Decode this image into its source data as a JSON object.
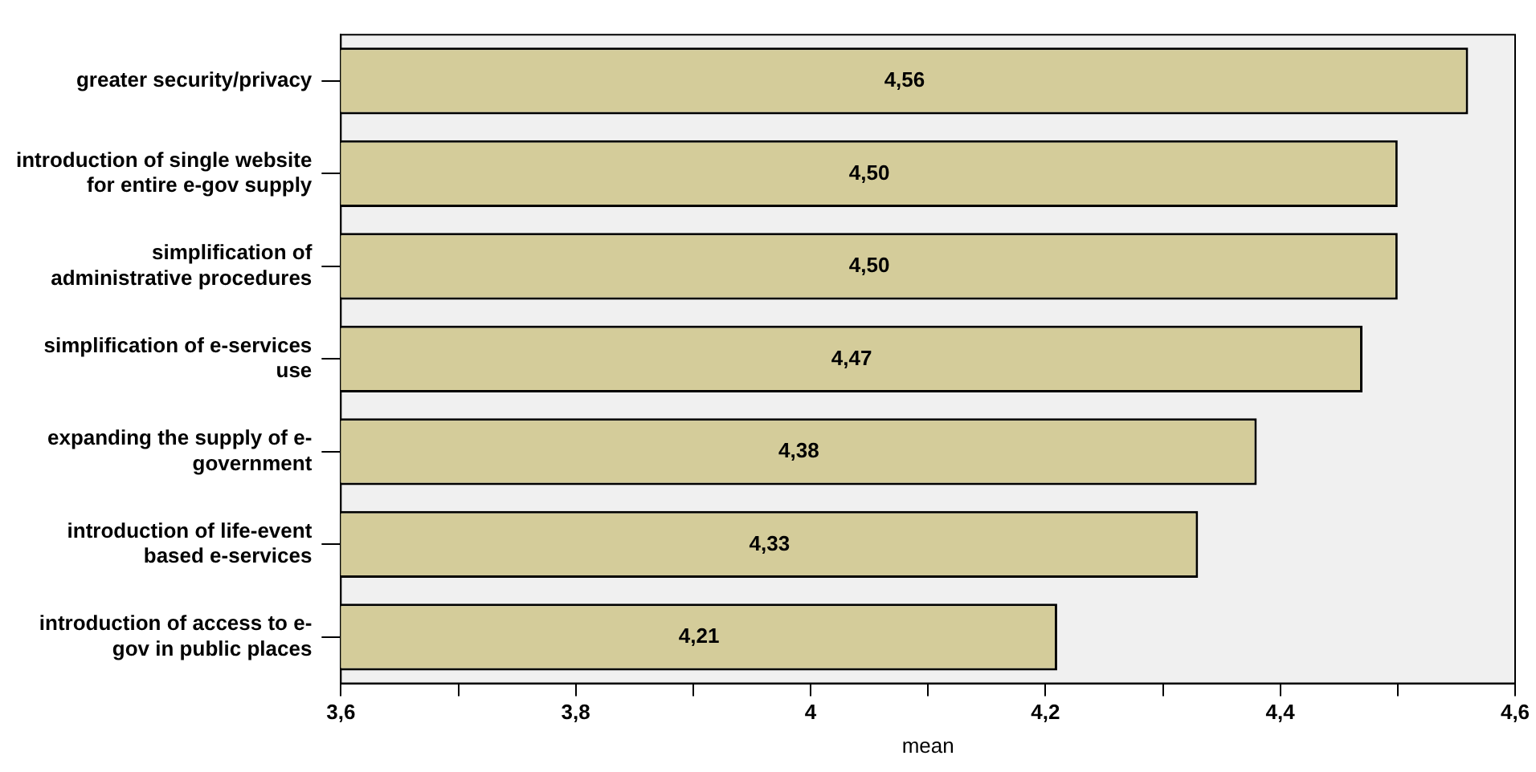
{
  "chart_data": {
    "type": "bar",
    "orientation": "horizontal",
    "xlabel": "mean",
    "categories": [
      "greater security/privacy",
      "introduction of single website for entire e-gov supply",
      "simplification of administrative procedures",
      "simplification of e-services use",
      "expanding the supply of e-government",
      "introduction of life-event based e-services",
      "introduction of access to e-gov in public places"
    ],
    "values": [
      4.56,
      4.5,
      4.5,
      4.47,
      4.38,
      4.33,
      4.21
    ],
    "value_labels": [
      "4,56",
      "4,50",
      "4,50",
      "4,47",
      "4,38",
      "4,33",
      "4,21"
    ],
    "color": "#d4cc9a",
    "xlim": [
      3.6,
      4.6
    ],
    "xticks": [
      {
        "value": 3.6,
        "label": "3,6"
      },
      {
        "value": 3.7,
        "label": null
      },
      {
        "value": 3.8,
        "label": "3,8"
      },
      {
        "value": 3.9,
        "label": null
      },
      {
        "value": 4,
        "label": "4"
      },
      {
        "value": 4.1,
        "label": null
      },
      {
        "value": 4.2,
        "label": "4,2"
      },
      {
        "value": 4.3,
        "label": null
      },
      {
        "value": 4.4,
        "label": "4,4"
      },
      {
        "value": 4.5,
        "label": null
      },
      {
        "value": 4.6,
        "label": "4,6"
      }
    ],
    "grid": false,
    "legend": false
  }
}
